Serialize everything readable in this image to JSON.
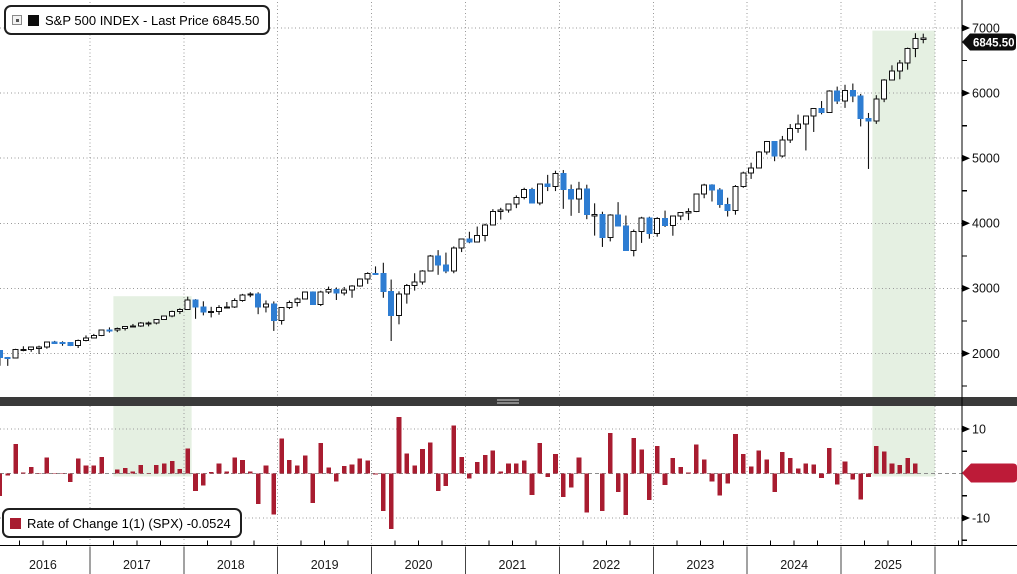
{
  "price_panel": {
    "legend_text": "S&P 500 INDEX - Last Price 6845.50",
    "badge_value": "6845.50",
    "axis_tick_labels": [
      "7000",
      "6000",
      "5000",
      "4000",
      "3000",
      "2000"
    ]
  },
  "roc_panel": {
    "legend_text": "Rate of Change 1(1) (SPX) -0.0524",
    "axis_tick_labels": [
      "10",
      "-10"
    ],
    "last_value": -0.0524
  },
  "x_axis": {
    "year_labels": [
      "2016",
      "2017",
      "2018",
      "2019",
      "2020",
      "2021",
      "2022",
      "2023",
      "2024",
      "2025"
    ]
  },
  "colors": {
    "up_candle_fill": "#ffffff",
    "candle_outline": "#111111",
    "down_candle": "#2e7dd2",
    "roc_bar": "#a81c30",
    "badge_black": "#0d0d0d",
    "badge_red": "#bd1b38",
    "band_green": "#e5f0e2",
    "grid": "#999999",
    "axis": "#000000",
    "divider": "#3a3a3a"
  },
  "chart_data": {
    "type": [
      "candlestick",
      "bar"
    ],
    "title": "S&P 500 INDEX - Last Price 6845.50",
    "subtitle_lower": "Rate of Change 1(1) (SPX) -0.0524",
    "start_month": "2016-01",
    "last_price": 6845.5,
    "price_axis": {
      "ticks": [
        7000,
        6000,
        5000,
        4000,
        3000,
        2000
      ],
      "minor_step": 500,
      "range_top": 7430,
      "range_bottom": 1300
    },
    "roc_axis": {
      "ticks": [
        10,
        -10
      ],
      "minor_step": 5,
      "range": [
        -15,
        15
      ]
    },
    "years": [
      2016,
      2017,
      2018,
      2019,
      2020,
      2021,
      2022,
      2023,
      2024,
      2025
    ],
    "grid": "dotted",
    "legend_position": "top-left",
    "highlight_bands": [
      {
        "from": "2017-04",
        "to": "2018-02",
        "top_price": 2880
      },
      {
        "from": "2025-05",
        "to": "2026-01",
        "top_price": 6960
      }
    ],
    "months_ohlc": [
      [
        2044,
        2044,
        1812,
        1940
      ],
      [
        1940,
        1947,
        1810,
        1932
      ],
      [
        1932,
        2072,
        1932,
        2060
      ],
      [
        2060,
        2111,
        2034,
        2065
      ],
      [
        2065,
        2103,
        2026,
        2097
      ],
      [
        2097,
        2120,
        1992,
        2099
      ],
      [
        2099,
        2177,
        2074,
        2174
      ],
      [
        2174,
        2194,
        2148,
        2171
      ],
      [
        2171,
        2187,
        2119,
        2168
      ],
      [
        2168,
        2175,
        2114,
        2126
      ],
      [
        2126,
        2214,
        2084,
        2199
      ],
      [
        2199,
        2278,
        2187,
        2239
      ],
      [
        2239,
        2301,
        2234,
        2279
      ],
      [
        2279,
        2368,
        2267,
        2364
      ],
      [
        2364,
        2401,
        2322,
        2363
      ],
      [
        2363,
        2399,
        2329,
        2384
      ],
      [
        2384,
        2418,
        2353,
        2412
      ],
      [
        2412,
        2454,
        2406,
        2423
      ],
      [
        2423,
        2484,
        2408,
        2470
      ],
      [
        2470,
        2491,
        2417,
        2472
      ],
      [
        2472,
        2520,
        2447,
        2519
      ],
      [
        2519,
        2583,
        2519,
        2575
      ],
      [
        2575,
        2658,
        2557,
        2648
      ],
      [
        2648,
        2695,
        2606,
        2674
      ],
      [
        2674,
        2873,
        2674,
        2824
      ],
      [
        2824,
        2835,
        2533,
        2714
      ],
      [
        2714,
        2802,
        2586,
        2641
      ],
      [
        2641,
        2717,
        2554,
        2648
      ],
      [
        2648,
        2742,
        2595,
        2705
      ],
      [
        2705,
        2791,
        2692,
        2718
      ],
      [
        2718,
        2848,
        2699,
        2816
      ],
      [
        2816,
        2916,
        2796,
        2902
      ],
      [
        2902,
        2941,
        2865,
        2914
      ],
      [
        2914,
        2940,
        2604,
        2712
      ],
      [
        2712,
        2815,
        2631,
        2760
      ],
      [
        2760,
        2800,
        2347,
        2507
      ],
      [
        2507,
        2708,
        2444,
        2704
      ],
      [
        2704,
        2813,
        2682,
        2785
      ],
      [
        2785,
        2860,
        2722,
        2834
      ],
      [
        2834,
        2949,
        2834,
        2946
      ],
      [
        2946,
        2954,
        2751,
        2752
      ],
      [
        2752,
        2964,
        2729,
        2942
      ],
      [
        2942,
        3028,
        2914,
        2980
      ],
      [
        2980,
        3014,
        2822,
        2926
      ],
      [
        2926,
        3022,
        2892,
        2977
      ],
      [
        2977,
        3050,
        2856,
        3038
      ],
      [
        3038,
        3154,
        3025,
        3141
      ],
      [
        3141,
        3248,
        3070,
        3231
      ],
      [
        3231,
        3338,
        3214,
        3226
      ],
      [
        3226,
        3394,
        2856,
        2954
      ],
      [
        2954,
        3136,
        2192,
        2585
      ],
      [
        2585,
        2955,
        2448,
        2912
      ],
      [
        2912,
        3068,
        2766,
        3044
      ],
      [
        3044,
        3233,
        2966,
        3100
      ],
      [
        3100,
        3280,
        3058,
        3271
      ],
      [
        3271,
        3514,
        3260,
        3500
      ],
      [
        3500,
        3588,
        3209,
        3363
      ],
      [
        3363,
        3550,
        3234,
        3270
      ],
      [
        3270,
        3645,
        3233,
        3622
      ],
      [
        3622,
        3760,
        3558,
        3756
      ],
      [
        3756,
        3870,
        3694,
        3714
      ],
      [
        3714,
        3950,
        3714,
        3811
      ],
      [
        3811,
        3994,
        3723,
        3973
      ],
      [
        3973,
        4218,
        3973,
        4181
      ],
      [
        4181,
        4238,
        4057,
        4204
      ],
      [
        4204,
        4302,
        4164,
        4298
      ],
      [
        4298,
        4429,
        4233,
        4395
      ],
      [
        4395,
        4546,
        4368,
        4523
      ],
      [
        4523,
        4546,
        4306,
        4308
      ],
      [
        4308,
        4608,
        4278,
        4605
      ],
      [
        4605,
        4744,
        4495,
        4567
      ],
      [
        4567,
        4808,
        4495,
        4766
      ],
      [
        4766,
        4819,
        4222,
        4516
      ],
      [
        4516,
        4595,
        4115,
        4374
      ],
      [
        4374,
        4637,
        4158,
        4530
      ],
      [
        4530,
        4593,
        4063,
        4132
      ],
      [
        4132,
        4307,
        3811,
        4132
      ],
      [
        4132,
        4178,
        3637,
        3785
      ],
      [
        3785,
        4140,
        3722,
        4130
      ],
      [
        4130,
        4325,
        3954,
        3955
      ],
      [
        3955,
        4119,
        3585,
        3586
      ],
      [
        3586,
        3905,
        3492,
        3872
      ],
      [
        3872,
        4100,
        3699,
        4080
      ],
      [
        4080,
        4101,
        3764,
        3840
      ],
      [
        3840,
        4094,
        3794,
        4077
      ],
      [
        4077,
        4195,
        3943,
        3970
      ],
      [
        3970,
        4110,
        3809,
        4109
      ],
      [
        4109,
        4170,
        4049,
        4169
      ],
      [
        4169,
        4231,
        4048,
        4180
      ],
      [
        4180,
        4458,
        4172,
        4450
      ],
      [
        4450,
        4607,
        4385,
        4589
      ],
      [
        4589,
        4600,
        4335,
        4508
      ],
      [
        4508,
        4541,
        4238,
        4288
      ],
      [
        4288,
        4393,
        4104,
        4194
      ],
      [
        4194,
        4587,
        4132,
        4568
      ],
      [
        4568,
        4793,
        4546,
        4770
      ],
      [
        4770,
        4931,
        4682,
        4846
      ],
      [
        4846,
        5111,
        4846,
        5096
      ],
      [
        5096,
        5265,
        5056,
        5254
      ],
      [
        5254,
        5264,
        4954,
        5036
      ],
      [
        5036,
        5342,
        5011,
        5278
      ],
      [
        5278,
        5524,
        5234,
        5460
      ],
      [
        5460,
        5670,
        5390,
        5522
      ],
      [
        5522,
        5652,
        5119,
        5648
      ],
      [
        5648,
        5767,
        5403,
        5762
      ],
      [
        5762,
        5878,
        5674,
        5705
      ],
      [
        5705,
        6044,
        5696,
        6032
      ],
      [
        6032,
        6100,
        5832,
        5882
      ],
      [
        5882,
        6128,
        5773,
        6041
      ],
      [
        6041,
        6147,
        5861,
        5955
      ],
      [
        5955,
        5986,
        5488,
        5612
      ],
      [
        5612,
        5695,
        4835,
        5569
      ],
      [
        5569,
        5968,
        5527,
        5912
      ],
      [
        5912,
        6215,
        5861,
        6205
      ],
      [
        6205,
        6427,
        6201,
        6340
      ],
      [
        6340,
        6508,
        6212,
        6460
      ],
      [
        6460,
        6699,
        6360,
        6688
      ],
      [
        6688,
        6920,
        6552,
        6840
      ],
      [
        6840,
        6913,
        6765,
        6845.5
      ]
    ],
    "roc_values": [
      -5.1,
      -0.4,
      6.6,
      0.2,
      1.5,
      0.1,
      3.6,
      -0.1,
      -0.1,
      -1.9,
      3.4,
      1.8,
      1.8,
      3.7,
      0.0,
      0.9,
      1.2,
      0.5,
      1.9,
      0.1,
      1.9,
      2.2,
      2.8,
      1.0,
      5.6,
      -3.9,
      -2.7,
      0.3,
      2.2,
      0.5,
      3.6,
      3.0,
      0.4,
      -6.9,
      1.8,
      -9.2,
      7.9,
      3.0,
      1.8,
      4.0,
      -6.6,
      6.9,
      1.3,
      -1.8,
      1.7,
      2.0,
      3.4,
      2.9,
      -0.2,
      -8.4,
      -12.5,
      12.7,
      4.5,
      1.8,
      5.5,
      7.0,
      -3.9,
      -2.8,
      10.8,
      3.7,
      -1.1,
      2.6,
      4.2,
      5.2,
      0.5,
      2.2,
      2.3,
      2.9,
      -4.8,
      6.9,
      -0.8,
      4.4,
      -5.3,
      -3.1,
      3.6,
      -8.8,
      0.0,
      -8.4,
      9.1,
      -4.2,
      -9.3,
      8.0,
      5.4,
      -5.9,
      6.2,
      -2.6,
      3.5,
      1.5,
      0.2,
      6.5,
      3.1,
      -1.8,
      -4.9,
      -2.2,
      8.9,
      4.4,
      1.6,
      5.2,
      3.1,
      -4.2,
      4.8,
      3.5,
      1.1,
      2.3,
      2.0,
      -1.0,
      5.7,
      -2.5,
      2.7,
      -1.4,
      -5.8,
      -0.8,
      6.2,
      5.0,
      2.2,
      1.9,
      3.5,
      2.3,
      -0.05
    ]
  }
}
